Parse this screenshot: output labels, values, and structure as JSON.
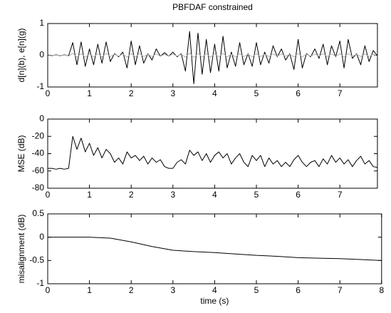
{
  "chart_data": [
    {
      "type": "line",
      "title": "PBFDAF constrained",
      "ylabel": "d[n](b), e[n](g)",
      "x": [
        0,
        0.1,
        0.2,
        0.3,
        0.4,
        0.5,
        0.6,
        0.7,
        0.8,
        0.9,
        1,
        1.1,
        1.2,
        1.3,
        1.4,
        1.5,
        1.6,
        1.7,
        1.8,
        1.9,
        2,
        2.1,
        2.2,
        2.3,
        2.4,
        2.5,
        2.6,
        2.7,
        2.8,
        2.9,
        3,
        3.1,
        3.2,
        3.3,
        3.4,
        3.5,
        3.6,
        3.7,
        3.8,
        3.9,
        4,
        4.1,
        4.2,
        4.3,
        4.4,
        4.5,
        4.6,
        4.7,
        4.8,
        4.9,
        5,
        5.1,
        5.2,
        5.3,
        5.4,
        5.5,
        5.6,
        5.7,
        5.8,
        5.9,
        6,
        6.1,
        6.2,
        6.3,
        6.4,
        6.5,
        6.6,
        6.7,
        6.8,
        6.9,
        7,
        7.1,
        7.2,
        7.3,
        7.4,
        7.5,
        7.6,
        7.7,
        7.8,
        7.9
      ],
      "series": [
        {
          "color": "#000000",
          "values": [
            0.02,
            -0.02,
            0.02,
            -0.02,
            0.02,
            -0.02,
            0.4,
            -0.3,
            0.42,
            -0.35,
            0.2,
            -0.3,
            0.35,
            -0.25,
            0.42,
            -0.2,
            0.05,
            -0.05,
            0.1,
            -0.4,
            0.45,
            -0.3,
            0.3,
            -0.25,
            0.05,
            -0.15,
            0.2,
            -0.03,
            0.08,
            -0.03,
            0.1,
            -0.05,
            0.05,
            -0.5,
            0.75,
            -0.9,
            0.7,
            -0.6,
            0.5,
            -0.55,
            0.35,
            -0.5,
            0.6,
            -0.4,
            0.1,
            -0.35,
            0.4,
            -0.3,
            0.05,
            -0.35,
            0.4,
            -0.3,
            0.1,
            -0.25,
            0.3,
            -0.05,
            0.2,
            -0.15,
            0.05,
            -0.45,
            0.5,
            -0.4,
            0.05,
            -0.05,
            0.2,
            -0.1,
            0.35,
            -0.3,
            0.3,
            -0.05,
            0.45,
            -0.4,
            0.5,
            -0.1,
            0.05,
            -0.3,
            0.3,
            -0.2,
            0.15,
            -0.02
          ]
        },
        {
          "color": "#b0b0b0",
          "values": [
            0.03,
            -0.03,
            0.03,
            -0.03,
            0.03,
            -0.03,
            0.06,
            -0.06,
            0.05,
            -0.06,
            0.04,
            -0.05,
            0.05,
            -0.05,
            0.06,
            -0.04,
            0.03,
            -0.03,
            0.04,
            -0.06,
            0.06,
            -0.05,
            0.05,
            -0.04,
            0.03,
            -0.04,
            0.04,
            -0.03,
            0.03,
            -0.03,
            0.04,
            -0.03,
            0.03,
            -0.06,
            0.07,
            -0.07,
            0.06,
            -0.06,
            0.05,
            -0.06,
            0.05,
            -0.05,
            0.06,
            -0.05,
            0.03,
            -0.05,
            0.05,
            -0.04,
            0.03,
            -0.05,
            0.05,
            -0.04,
            0.03,
            -0.04,
            0.04,
            -0.03,
            0.04,
            -0.03,
            0.03,
            -0.05,
            0.05,
            -0.05,
            0.03,
            -0.03,
            0.04,
            -0.03,
            0.05,
            -0.04,
            0.04,
            -0.03,
            0.05,
            -0.05,
            0.05,
            -0.03,
            0.03,
            -0.04,
            0.04,
            -0.04,
            0.03,
            -0.03
          ]
        }
      ],
      "xlim": [
        0,
        7.9
      ],
      "xticks": [
        0,
        1,
        2,
        3,
        4,
        5,
        6,
        7
      ],
      "ylim": [
        -1,
        1
      ],
      "yticks": [
        -1,
        0,
        1
      ]
    },
    {
      "type": "line",
      "ylabel": "MSE (dB)",
      "x": [
        0,
        0.1,
        0.2,
        0.3,
        0.4,
        0.5,
        0.6,
        0.7,
        0.8,
        0.9,
        1,
        1.1,
        1.2,
        1.3,
        1.4,
        1.5,
        1.6,
        1.7,
        1.8,
        1.9,
        2,
        2.1,
        2.2,
        2.3,
        2.4,
        2.5,
        2.6,
        2.7,
        2.8,
        2.9,
        3,
        3.1,
        3.2,
        3.3,
        3.4,
        3.5,
        3.6,
        3.7,
        3.8,
        3.9,
        4,
        4.1,
        4.2,
        4.3,
        4.4,
        4.5,
        4.6,
        4.7,
        4.8,
        4.9,
        5,
        5.1,
        5.2,
        5.3,
        5.4,
        5.5,
        5.6,
        5.7,
        5.8,
        5.9,
        6,
        6.1,
        6.2,
        6.3,
        6.4,
        6.5,
        6.6,
        6.7,
        6.8,
        6.9,
        7,
        7.1,
        7.2,
        7.3,
        7.4,
        7.5,
        7.6,
        7.7,
        7.8,
        7.9
      ],
      "series": [
        {
          "color": "#000000",
          "values": [
            -57,
            -57,
            -58,
            -57,
            -58,
            -57,
            -20,
            -35,
            -22,
            -38,
            -28,
            -42,
            -33,
            -45,
            -35,
            -40,
            -50,
            -45,
            -52,
            -38,
            -45,
            -42,
            -48,
            -43,
            -52,
            -45,
            -50,
            -47,
            -55,
            -57,
            -57,
            -50,
            -47,
            -52,
            -36,
            -42,
            -38,
            -48,
            -40,
            -50,
            -42,
            -38,
            -45,
            -40,
            -52,
            -45,
            -40,
            -50,
            -55,
            -42,
            -48,
            -42,
            -55,
            -45,
            -52,
            -48,
            -55,
            -50,
            -55,
            -47,
            -42,
            -50,
            -55,
            -50,
            -48,
            -55,
            -46,
            -52,
            -42,
            -50,
            -45,
            -52,
            -47,
            -55,
            -48,
            -43,
            -52,
            -48,
            -55,
            -56
          ]
        }
      ],
      "xlim": [
        0,
        7.9
      ],
      "xticks": [
        0,
        1,
        2,
        3,
        4,
        5,
        6,
        7
      ],
      "ylim": [
        -80,
        0
      ],
      "yticks": [
        -80,
        -60,
        -40,
        -20,
        0
      ]
    },
    {
      "type": "line",
      "ylabel": "misalignment (dB)",
      "xlabel": "time (s)",
      "x": [
        0,
        0.5,
        1,
        1.5,
        2,
        2.5,
        3,
        3.5,
        4,
        4.5,
        5,
        5.5,
        6,
        6.5,
        7,
        7.5,
        8
      ],
      "series": [
        {
          "color": "#000000",
          "values": [
            0,
            0,
            0,
            -0.02,
            -0.1,
            -0.2,
            -0.28,
            -0.31,
            -0.33,
            -0.36,
            -0.39,
            -0.41,
            -0.44,
            -0.45,
            -0.46,
            -0.48,
            -0.5
          ]
        }
      ],
      "xlim": [
        0,
        8
      ],
      "xticks": [
        0,
        1,
        2,
        3,
        4,
        5,
        6,
        7,
        8
      ],
      "ylim": [
        -1,
        0.5
      ],
      "yticks": [
        -1,
        -0.5,
        0,
        0.5
      ]
    }
  ]
}
